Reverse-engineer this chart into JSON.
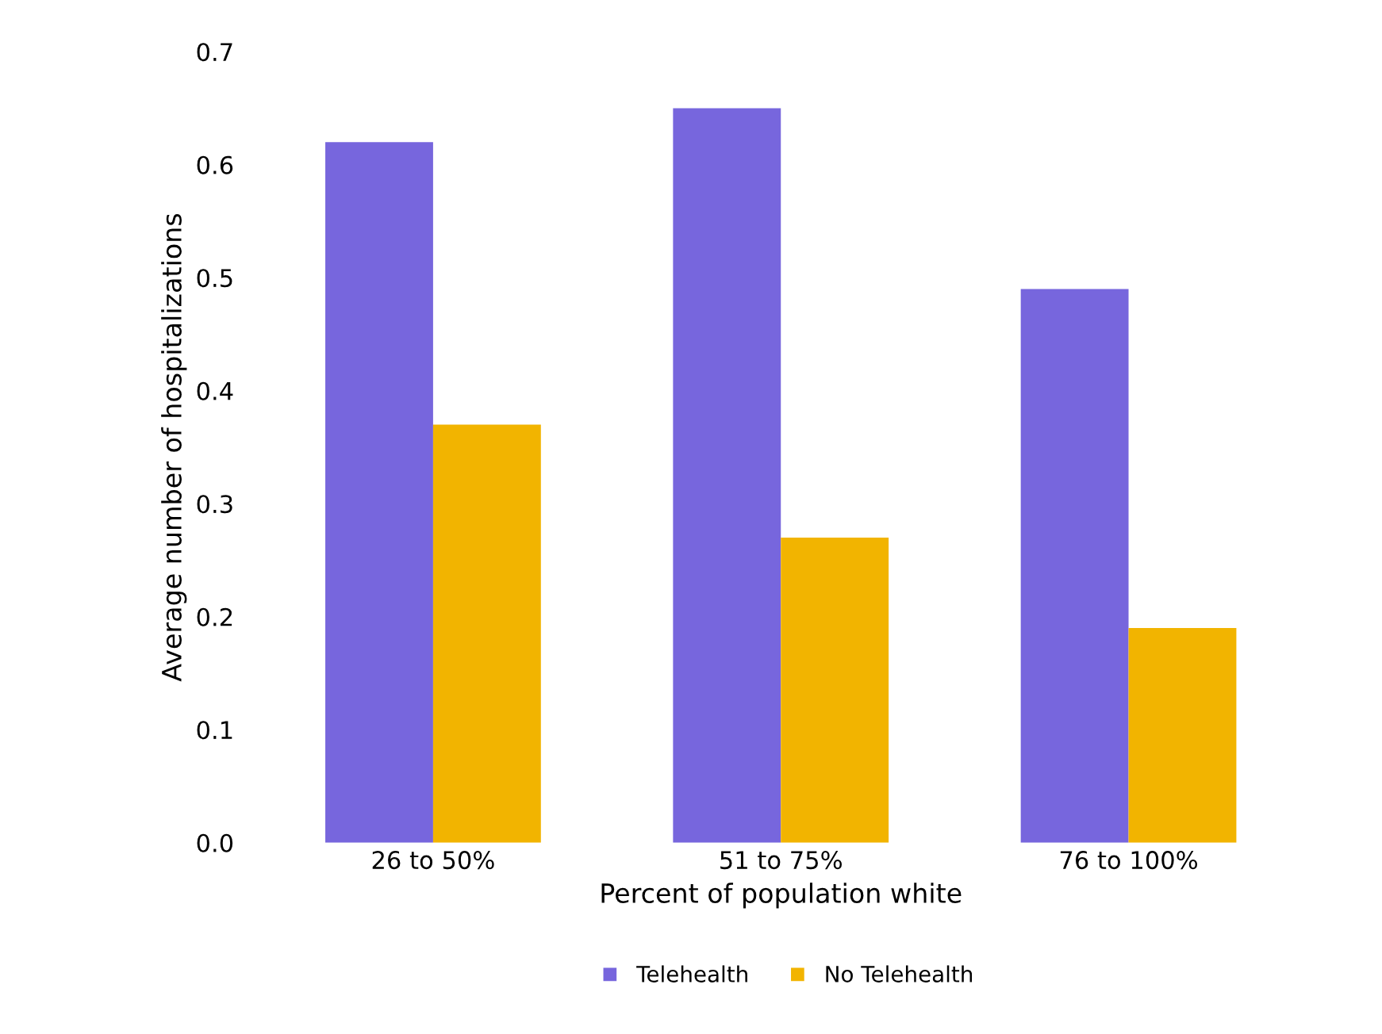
{
  "chart_data": {
    "type": "bar",
    "xlabel": "Percent of population white",
    "ylabel": "Average number of hospitalizations",
    "categories": [
      "26 to 50%",
      "51 to 75%",
      "76 to 100%"
    ],
    "series": [
      {
        "name": "Telehealth",
        "color": "#7766dd",
        "values": [
          0.62,
          0.65,
          0.49
        ]
      },
      {
        "name": "No Telehealth",
        "color": "#f2b400",
        "values": [
          0.37,
          0.27,
          0.19
        ]
      }
    ],
    "ylim": [
      0,
      0.7
    ],
    "yticks": [
      {
        "value": 0,
        "label": "0.0"
      },
      0.1,
      0.2,
      0.3,
      0.4,
      0.5,
      0.6,
      0.7
    ],
    "grid": false,
    "legend": "bottom"
  }
}
